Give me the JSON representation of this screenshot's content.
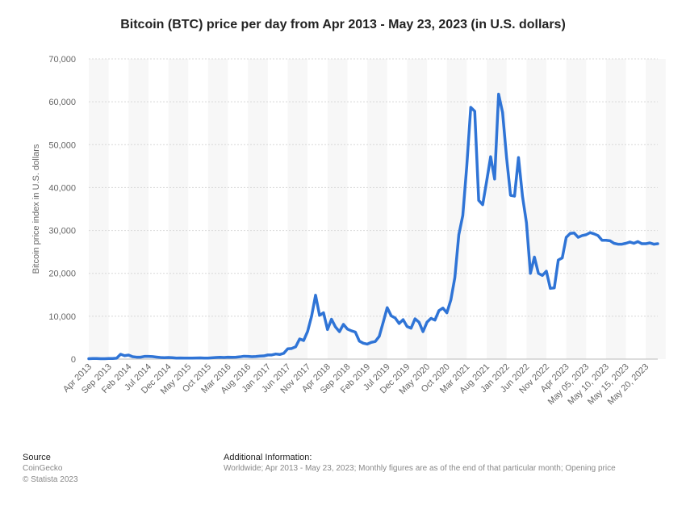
{
  "chart_data": {
    "type": "line",
    "title": "Bitcoin (BTC) price per day from Apr 2013 - May 23, 2023 (in U.S. dollars)",
    "y_axis_label": "Bitcoin price index in U.S. dollars",
    "color": "#2f74d6",
    "grid": true,
    "categories": [
      "Apr 2013",
      null,
      null,
      null,
      null,
      "Sep 2013",
      null,
      null,
      null,
      null,
      "Feb 2014",
      null,
      null,
      null,
      null,
      "Jul 2014",
      null,
      null,
      null,
      null,
      "Dec 2014",
      null,
      null,
      null,
      null,
      "May 2015",
      null,
      null,
      null,
      null,
      "Oct 2015",
      null,
      null,
      null,
      null,
      "Mar 2016",
      null,
      null,
      null,
      null,
      "Aug 2016",
      null,
      null,
      null,
      null,
      "Jan 2017",
      null,
      null,
      null,
      null,
      "Jun 2017",
      null,
      null,
      null,
      null,
      "Nov 2017",
      null,
      null,
      null,
      null,
      "Apr 2018",
      null,
      null,
      null,
      null,
      "Sep 2018",
      null,
      null,
      null,
      null,
      "Feb 2019",
      null,
      null,
      null,
      null,
      "Jul 2019",
      null,
      null,
      null,
      null,
      "Dec 2019",
      null,
      null,
      null,
      null,
      "May 2020",
      null,
      null,
      null,
      null,
      "Oct 2020",
      null,
      null,
      null,
      null,
      "Mar 2021",
      null,
      null,
      null,
      null,
      "Aug 2021",
      null,
      null,
      null,
      null,
      "Jan 2022",
      null,
      null,
      null,
      null,
      "Jun 2022",
      null,
      null,
      null,
      null,
      "Nov 2022",
      null,
      null,
      null,
      null,
      "Apr 2023",
      null,
      null,
      null,
      null,
      "May 05, 2023",
      null,
      null,
      null,
      null,
      "May 10, 2023",
      null,
      null,
      null,
      null,
      "May 15, 2023",
      null,
      null,
      null,
      null,
      "May 20, 2023",
      null,
      null,
      null
    ],
    "values": [
      93,
      139,
      129,
      97,
      106,
      135,
      133,
      204,
      1129,
      805,
      935,
      565,
      457,
      447,
      627,
      640,
      586,
      478,
      387,
      338,
      378,
      320,
      226,
      254,
      247,
      236,
      230,
      263,
      284,
      230,
      236,
      311,
      378,
      430,
      369,
      437,
      416,
      448,
      531,
      670,
      624,
      573,
      609,
      701,
      742,
      963,
      970,
      1190,
      1080,
      1350,
      2400,
      2480,
      2870,
      4700,
      4340,
      6450,
      10000,
      14900,
      10200,
      10800,
      6900,
      9300,
      7500,
      6400,
      8100,
      7000,
      6600,
      6300,
      4200,
      3700,
      3500,
      3900,
      4100,
      5300,
      8600,
      12000,
      10100,
      9600,
      8300,
      9200,
      7600,
      7200,
      9400,
      8600,
      6400,
      8600,
      9500,
      9100,
      11300,
      11900,
      10800,
      13800,
      19000,
      29000,
      33500,
      45000,
      58700,
      57800,
      37000,
      36000,
      41500,
      47200,
      42000,
      61800,
      57500,
      47000,
      38200,
      38000,
      47000,
      38000,
      31800,
      20000,
      23800,
      20000,
      19500,
      20500,
      16500,
      16600,
      23100,
      23600,
      28400,
      29300,
      29400,
      28400,
      28800,
      29000,
      29500,
      29200,
      28800,
      27700,
      27700,
      27600,
      27000,
      26800,
      26800,
      27000,
      27300,
      27000,
      27400,
      26900,
      26900,
      27100,
      26800,
      26900
    ],
    "ylim": [
      0,
      70000
    ],
    "yticks": [
      0,
      {
        "value": 10000,
        "label": "10,000"
      },
      {
        "value": 20000,
        "label": "20,000"
      },
      {
        "value": 30000,
        "label": "30,000"
      },
      {
        "value": 40000,
        "label": "40,000"
      },
      {
        "value": 50000,
        "label": "50,000"
      },
      {
        "value": 60000,
        "label": "60,000"
      },
      {
        "value": 70000,
        "label": "70,000"
      }
    ]
  },
  "footer": {
    "source_heading": "Source",
    "source": "CoinGecko",
    "copyright": "© Statista 2023",
    "info_heading": "Additional Information:",
    "info": "Worldwide; Apr 2013 - May 23, 2023; Monthly figures are as of the end of that particular month; Opening price"
  }
}
